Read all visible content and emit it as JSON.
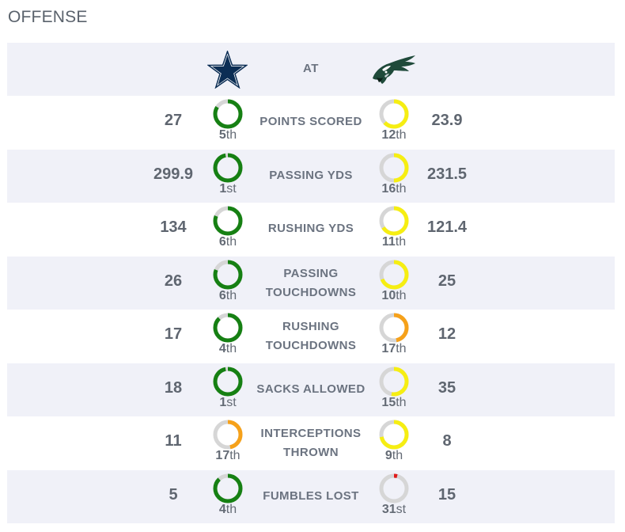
{
  "section_title": "OFFENSE",
  "header": {
    "home_logo": "dallas-cowboys-star-icon",
    "at_label": "AT",
    "away_logo": "philadelphia-eagles-icon"
  },
  "colors": {
    "top": "#168013",
    "mid": "#f6ee12",
    "low": "#f6a11a",
    "bottom": "#e01b1b",
    "track": "#d6d6d6",
    "row_alt": "#f0f1f8"
  },
  "rows": [
    {
      "label": "POINTS SCORED",
      "left_value": "27",
      "left_rank_num": "5",
      "left_rank_sfx": "th",
      "left_fill": 0.84,
      "left_color": "#168013",
      "right_value": "23.9",
      "right_rank_num": "12",
      "right_rank_sfx": "th",
      "right_fill": 0.63,
      "right_color": "#f6ee12"
    },
    {
      "label": "PASSING YDS",
      "left_value": "299.9",
      "left_rank_num": "1",
      "left_rank_sfx": "st",
      "left_fill": 0.97,
      "left_color": "#168013",
      "right_value": "231.5",
      "right_rank_num": "16",
      "right_rank_sfx": "th",
      "right_fill": 0.5,
      "right_color": "#f6ee12"
    },
    {
      "label": "RUSHING YDS",
      "left_value": "134",
      "left_rank_num": "6",
      "left_rank_sfx": "th",
      "left_fill": 0.81,
      "left_color": "#168013",
      "right_value": "121.4",
      "right_rank_num": "11",
      "right_rank_sfx": "th",
      "right_fill": 0.66,
      "right_color": "#f6ee12"
    },
    {
      "label": "PASSING TOUCHDOWNS",
      "label_lines": [
        "PASSING",
        "TOUCHDOWNS"
      ],
      "left_value": "26",
      "left_rank_num": "6",
      "left_rank_sfx": "th",
      "left_fill": 0.81,
      "left_color": "#168013",
      "right_value": "25",
      "right_rank_num": "10",
      "right_rank_sfx": "th",
      "right_fill": 0.69,
      "right_color": "#f6ee12"
    },
    {
      "label": "RUSHING TOUCHDOWNS",
      "label_lines": [
        "RUSHING",
        "TOUCHDOWNS"
      ],
      "left_value": "17",
      "left_rank_num": "4",
      "left_rank_sfx": "th",
      "left_fill": 0.88,
      "left_color": "#168013",
      "right_value": "12",
      "right_rank_num": "17",
      "right_rank_sfx": "th",
      "right_fill": 0.47,
      "right_color": "#f6a11a"
    },
    {
      "label": "SACKS ALLOWED",
      "left_value": "18",
      "left_rank_num": "1",
      "left_rank_sfx": "st",
      "left_fill": 0.97,
      "left_color": "#168013",
      "right_value": "35",
      "right_rank_num": "15",
      "right_rank_sfx": "th",
      "right_fill": 0.53,
      "right_color": "#f6ee12"
    },
    {
      "label": "INTERCEPTIONS THROWN",
      "label_lines": [
        "INTERCEPTIONS",
        "THROWN"
      ],
      "left_value": "11",
      "left_rank_num": "17",
      "left_rank_sfx": "th",
      "left_fill": 0.47,
      "left_color": "#f6a11a",
      "right_value": "8",
      "right_rank_num": "9",
      "right_rank_sfx": "th",
      "right_fill": 0.72,
      "right_color": "#f6ee12"
    },
    {
      "label": "FUMBLES LOST",
      "left_value": "5",
      "left_rank_num": "4",
      "left_rank_sfx": "th",
      "left_fill": 0.88,
      "left_color": "#168013",
      "right_value": "15",
      "right_rank_num": "31",
      "right_rank_sfx": "st",
      "right_fill": 0.04,
      "right_color": "#e01b1b"
    }
  ]
}
